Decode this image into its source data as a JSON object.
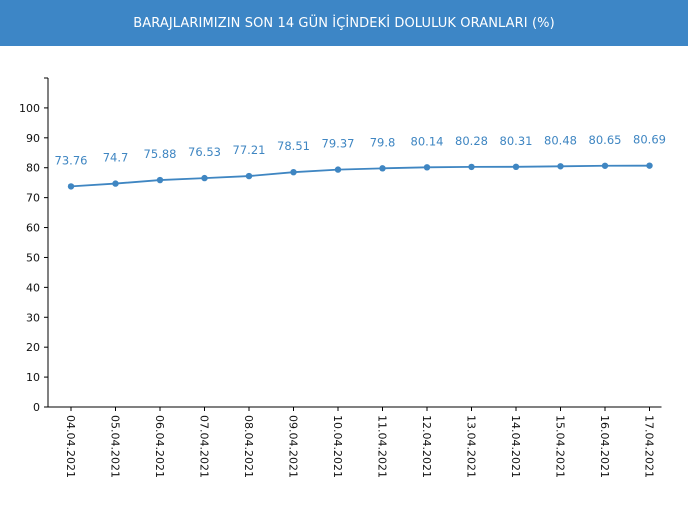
{
  "header": {
    "title": "BARAJLARIMIZIN SON 14 GÜN İÇİNDEKİ DOLULUK ORANLARI (%)"
  },
  "colors": {
    "header_bg": "#3d86c6",
    "series_line": "#3f86c2",
    "axis": "#000000"
  },
  "chart_data": {
    "type": "line",
    "title": "BARAJLARIMIZIN SON 14 GÜN İÇİNDEKİ DOLULUK ORANLARI (%)",
    "xlabel": "",
    "ylabel": "",
    "ylim": [
      0,
      110
    ],
    "yticks": [
      0,
      10,
      20,
      30,
      40,
      50,
      60,
      70,
      80,
      90,
      100
    ],
    "categories": [
      "04.04.2021",
      "05.04.2021",
      "06.04.2021",
      "07.04.2021",
      "08.04.2021",
      "09.04.2021",
      "10.04.2021",
      "11.04.2021",
      "12.04.2021",
      "13.04.2021",
      "14.04.2021",
      "15.04.2021",
      "16.04.2021",
      "17.04.2021"
    ],
    "values": [
      73.76,
      74.7,
      75.88,
      76.53,
      77.21,
      78.51,
      79.37,
      79.8,
      80.14,
      80.28,
      80.31,
      80.48,
      80.65,
      80.69
    ],
    "value_labels": [
      "73.76",
      "74.7",
      "75.88",
      "76.53",
      "77.21",
      "78.51",
      "79.37",
      "79.8",
      "80.14",
      "80.28",
      "80.31",
      "80.48",
      "80.65",
      "80.69"
    ],
    "grid": false,
    "legend": "none"
  }
}
